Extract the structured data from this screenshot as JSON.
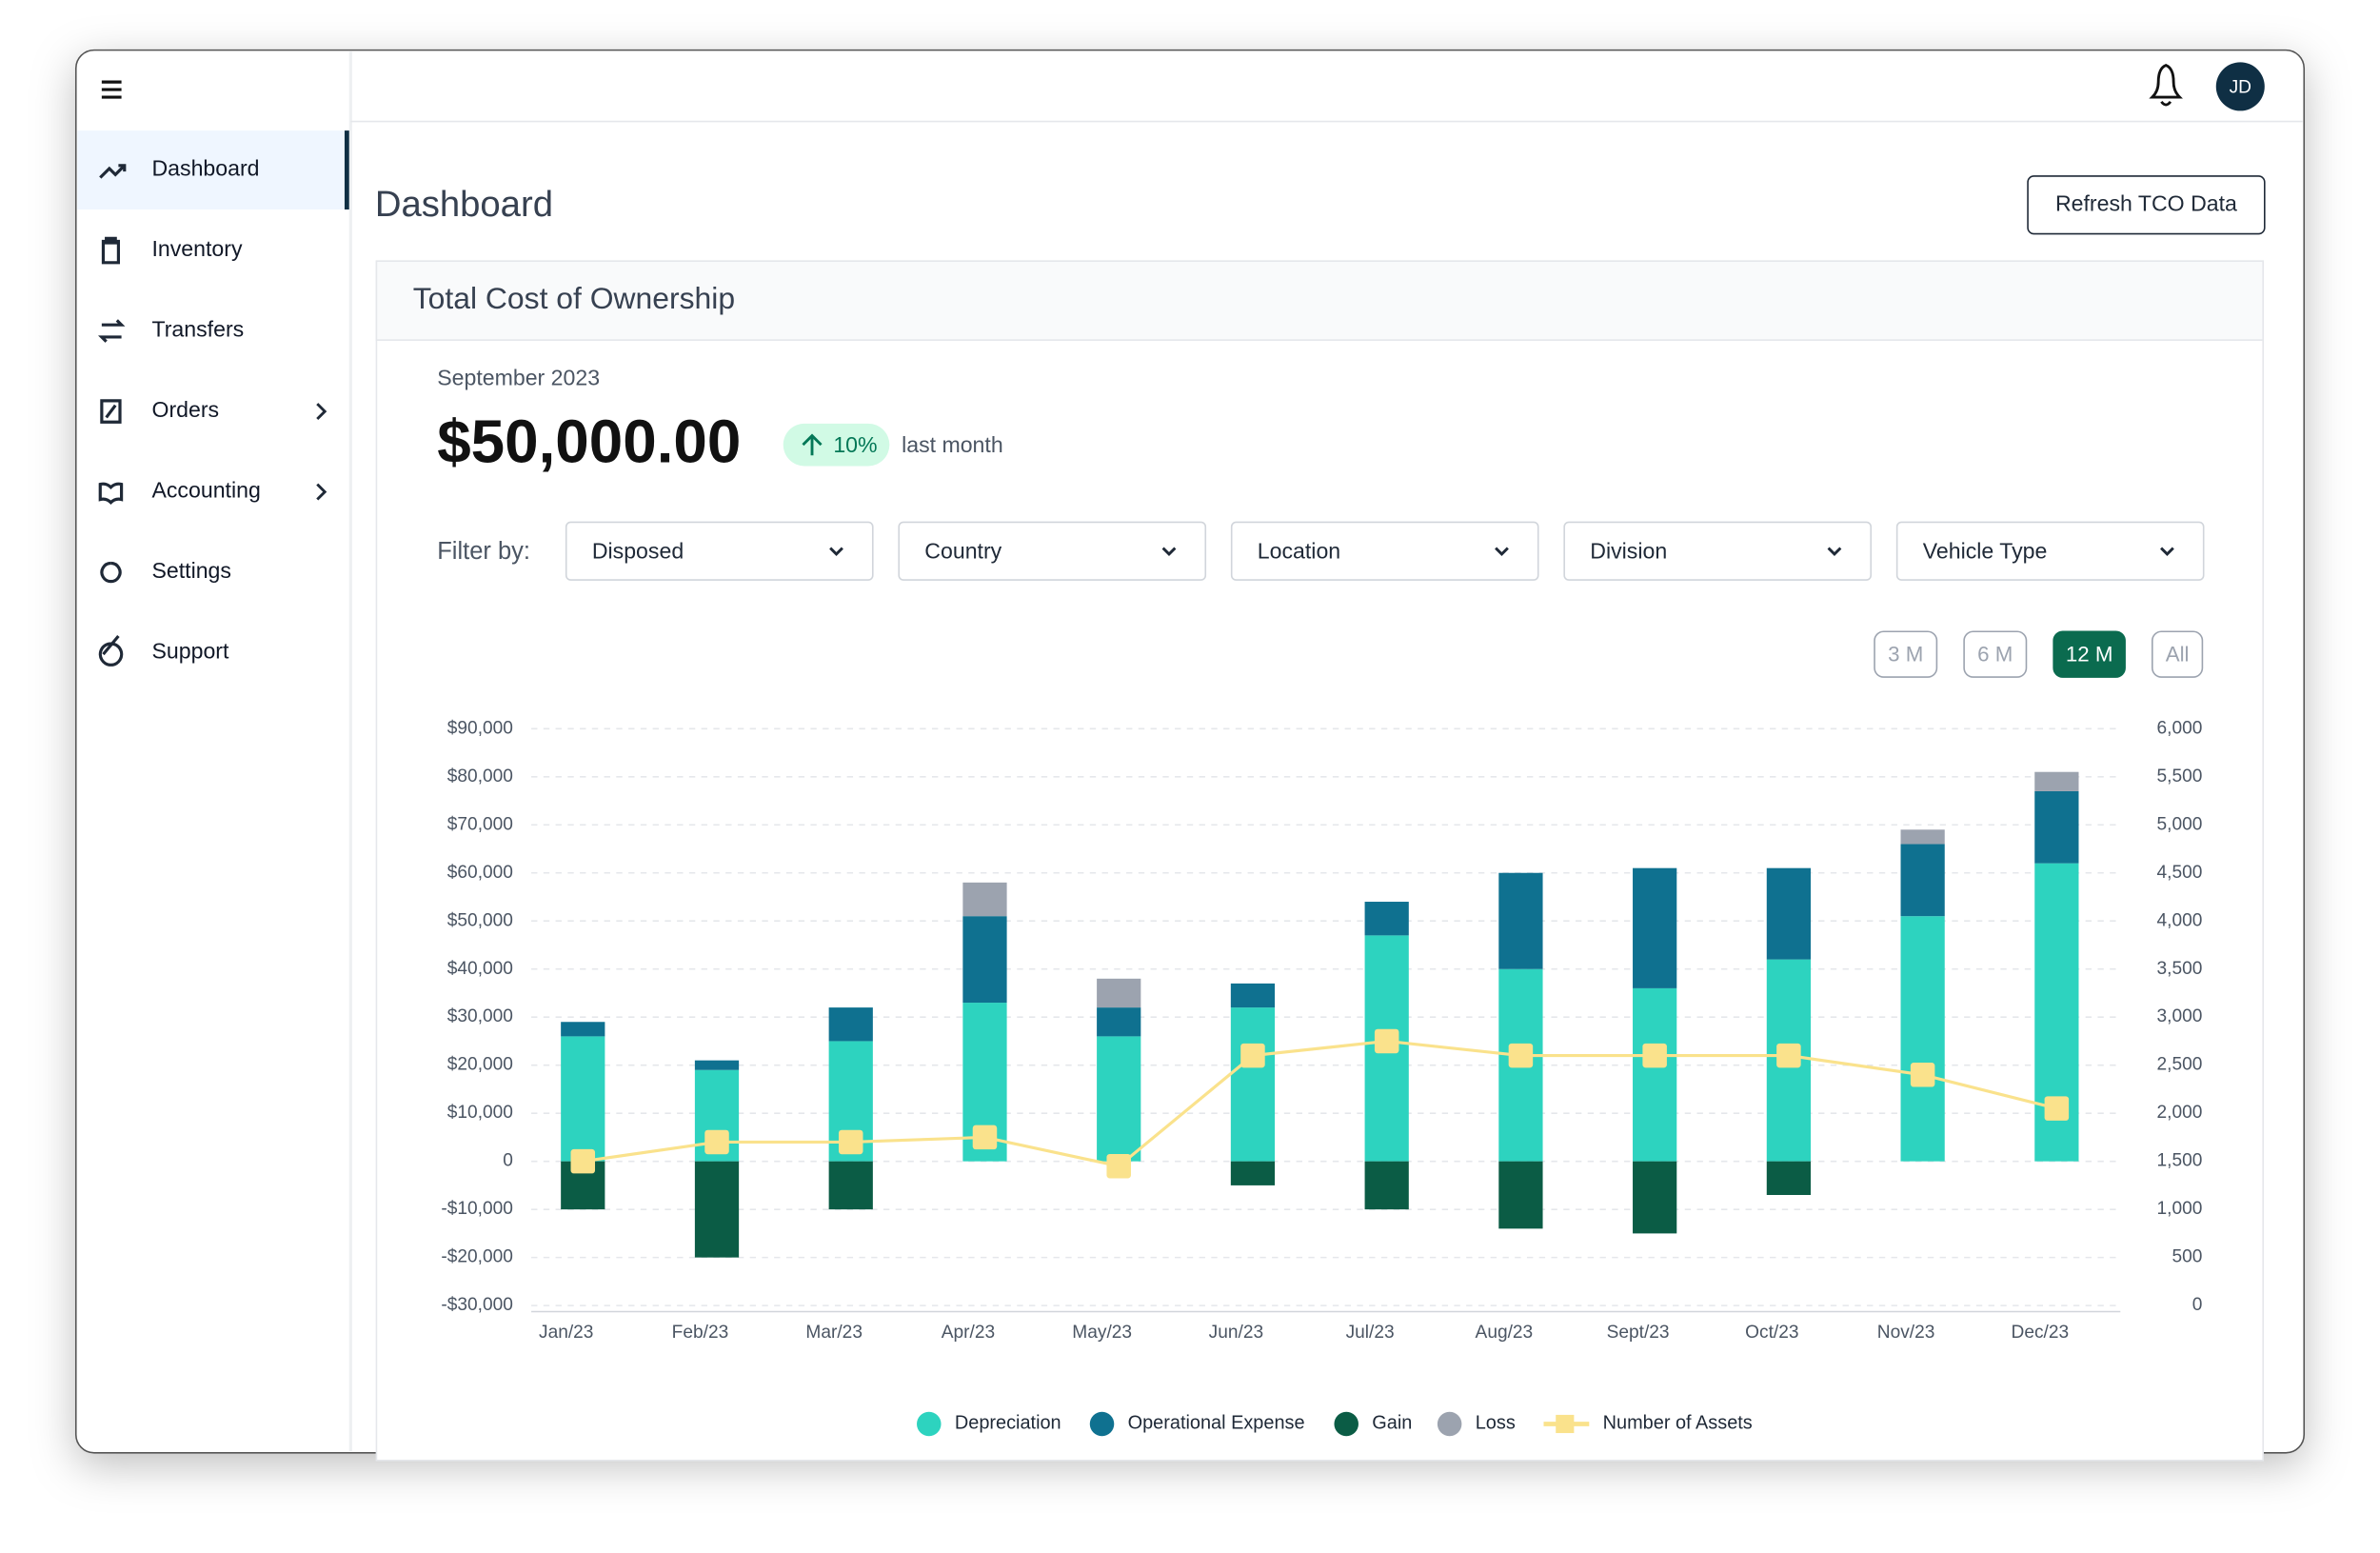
{
  "header": {
    "avatar": "JD"
  },
  "sidebar": {
    "items": [
      {
        "label": "Dashboard"
      },
      {
        "label": "Inventory"
      },
      {
        "label": "Transfers"
      },
      {
        "label": "Orders",
        "submenu": true
      },
      {
        "label": "Accounting",
        "submenu": true
      },
      {
        "label": "Settings"
      },
      {
        "label": "Support"
      }
    ]
  },
  "page": {
    "title": "Dashboard",
    "button": "Refresh TCO Data"
  },
  "card": {
    "title": "Total Cost of Ownership",
    "period": "September 2023",
    "amount": "$50,000.00",
    "change": "10%",
    "change_note": "last month",
    "filter_label": "Filter by:",
    "filters": [
      "Disposed",
      "Country",
      "Location",
      "Division",
      "Vehicle Type"
    ],
    "ranges": [
      "3 M",
      "6 M",
      "12 M",
      "All"
    ]
  },
  "chart_data": {
    "type": "bar",
    "stacked": true,
    "categories": [
      "Jan/23",
      "Feb/23",
      "Mar/23",
      "Apr/23",
      "May/23",
      "Jun/23",
      "Jul/23",
      "Aug/23",
      "Sept/23",
      "Oct/23",
      "Nov/23",
      "Dec/23"
    ],
    "series": [
      {
        "name": "Depreciation",
        "color": "#2dd3bf",
        "values": [
          26000,
          19000,
          25000,
          33000,
          26000,
          32000,
          47000,
          40000,
          36000,
          42000,
          51000,
          62000
        ]
      },
      {
        "name": "Operational Expense",
        "color": "#0f7190",
        "values": [
          3000,
          2000,
          7000,
          18000,
          6000,
          5000,
          7000,
          20000,
          25000,
          19000,
          15000,
          15000
        ]
      },
      {
        "name": "Gain",
        "color": "#0b5c45",
        "values": [
          -10000,
          -20000,
          -10000,
          0,
          0,
          -5000,
          -10000,
          -14000,
          -15000,
          -7000,
          0,
          0
        ]
      },
      {
        "name": "Loss",
        "color": "#9ca3af",
        "values": [
          0,
          0,
          0,
          7000,
          6000,
          0,
          0,
          0,
          0,
          0,
          3000,
          4000
        ]
      },
      {
        "name": "Number of Assets",
        "type": "line",
        "axis": "y2",
        "color": "#fae28c",
        "values": [
          1500,
          1700,
          1700,
          1750,
          1450,
          2600,
          2750,
          2600,
          2600,
          2600,
          2400,
          2050
        ]
      }
    ],
    "ylim": [
      -30000,
      90000
    ],
    "yticks": [
      {
        "value": -30000,
        "label": "-$30,000"
      },
      {
        "value": -20000,
        "label": "-$20,000"
      },
      {
        "value": -10000,
        "label": "-$10,000"
      },
      0,
      {
        "value": 10000,
        "label": "$10,000"
      },
      {
        "value": 20000,
        "label": "$20,000"
      },
      {
        "value": 30000,
        "label": "$30,000"
      },
      {
        "value": 40000,
        "label": "$40,000"
      },
      {
        "value": 50000,
        "label": "$50,000"
      },
      {
        "value": 60000,
        "label": "$60,000"
      },
      {
        "value": 70000,
        "label": "$70,000"
      },
      {
        "value": 80000,
        "label": "$80,000"
      },
      {
        "value": 90000,
        "label": "$90,000"
      }
    ],
    "y2lim": [
      0,
      6000
    ],
    "y2ticks": [
      0,
      500,
      {
        "value": 1000,
        "label": "1,000"
      },
      {
        "value": 1500,
        "label": "1,500"
      },
      {
        "value": 2000,
        "label": "2,000"
      },
      {
        "value": 2500,
        "label": "2,500"
      },
      {
        "value": 3000,
        "label": "3,000"
      },
      {
        "value": 3500,
        "label": "3,500"
      },
      {
        "value": 4000,
        "label": "4,000"
      },
      {
        "value": 4500,
        "label": "4,500"
      },
      {
        "value": 5000,
        "label": "5,000"
      },
      {
        "value": 5500,
        "label": "5,500"
      },
      {
        "value": 6000,
        "label": "6,000"
      }
    ],
    "grid": true,
    "legend": "bottom"
  }
}
